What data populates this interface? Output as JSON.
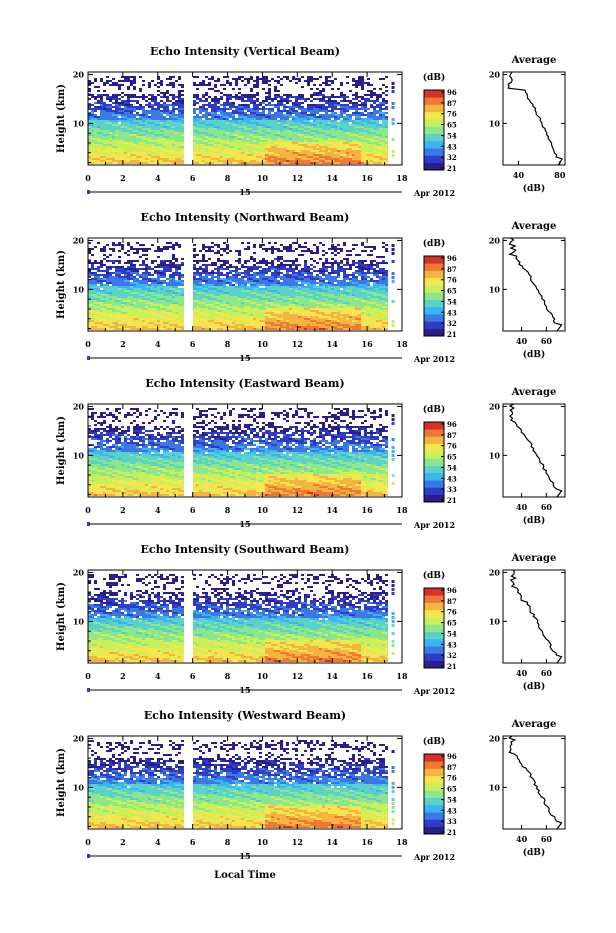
{
  "figure": {
    "footer_label": "Local Time",
    "date_label": "Apr 2012",
    "day_label": "15",
    "colorbar_unit": "(dB)",
    "profile_title": "Average",
    "profile_xlabel": "(dB)",
    "colormap": [
      "#2a1e8c",
      "#2f3cc8",
      "#3a78e6",
      "#3cb4f0",
      "#5ad2c8",
      "#8ce68c",
      "#c8f05a",
      "#f5e650",
      "#f5b440",
      "#f07832",
      "#d23228"
    ]
  },
  "chart_data": [
    {
      "type": "heatmap",
      "title": "Echo Intensity (Vertical Beam)",
      "ylabel": "Height (km)",
      "xticks": [
        0,
        2,
        4,
        6,
        8,
        10,
        12,
        14,
        16,
        18
      ],
      "yticks": [
        10,
        20
      ],
      "xlim": [
        0,
        18
      ],
      "ylim": [
        1.5,
        20.5
      ],
      "colorbar_ticks": [
        96,
        87,
        76,
        65,
        54,
        43,
        32,
        21
      ],
      "data_gap_hours": [
        5.5,
        6.0
      ],
      "profile": {
        "xticks": [
          40,
          80
        ],
        "xlim": [
          25,
          85
        ],
        "yticks": [
          10,
          20
        ]
      }
    },
    {
      "type": "heatmap",
      "title": "Echo Intensity (Northward Beam)",
      "ylabel": "Height (km)",
      "xticks": [
        0,
        2,
        4,
        6,
        8,
        10,
        12,
        14,
        16,
        18
      ],
      "yticks": [
        10,
        20
      ],
      "xlim": [
        0,
        18
      ],
      "ylim": [
        1.5,
        20.5
      ],
      "colorbar_ticks": [
        96,
        87,
        76,
        65,
        54,
        43,
        32,
        21
      ],
      "data_gap_hours": [
        5.5,
        6.0
      ],
      "profile": {
        "xticks": [
          40,
          60
        ],
        "xlim": [
          25,
          75
        ],
        "yticks": [
          10,
          20
        ]
      }
    },
    {
      "type": "heatmap",
      "title": "Echo Intensity (Eastward Beam)",
      "ylabel": "Height (km)",
      "xticks": [
        0,
        2,
        4,
        6,
        8,
        10,
        12,
        14,
        16,
        18
      ],
      "yticks": [
        10,
        20
      ],
      "xlim": [
        0,
        18
      ],
      "ylim": [
        1.5,
        20.5
      ],
      "colorbar_ticks": [
        96,
        87,
        76,
        65,
        54,
        43,
        33,
        21
      ],
      "data_gap_hours": [
        5.5,
        6.0
      ],
      "profile": {
        "xticks": [
          40,
          60
        ],
        "xlim": [
          25,
          75
        ],
        "yticks": [
          10,
          20
        ]
      }
    },
    {
      "type": "heatmap",
      "title": "Echo Intensity (Southward Beam)",
      "ylabel": "Height (km)",
      "xticks": [
        0,
        2,
        4,
        6,
        8,
        10,
        12,
        14,
        16,
        18
      ],
      "yticks": [
        10,
        20
      ],
      "xlim": [
        0,
        18
      ],
      "ylim": [
        1.5,
        20.5
      ],
      "colorbar_ticks": [
        96,
        87,
        76,
        65,
        54,
        43,
        32,
        21
      ],
      "data_gap_hours": [
        5.5,
        6.0
      ],
      "profile": {
        "xticks": [
          40,
          60
        ],
        "xlim": [
          25,
          75
        ],
        "yticks": [
          10,
          20
        ]
      }
    },
    {
      "type": "heatmap",
      "title": "Echo Intensity (Westward Beam)",
      "ylabel": "Height (km)",
      "xticks": [
        0,
        2,
        4,
        6,
        8,
        10,
        12,
        14,
        16,
        18
      ],
      "yticks": [
        10,
        20
      ],
      "xlim": [
        0,
        18
      ],
      "ylim": [
        1.5,
        20.5
      ],
      "colorbar_ticks": [
        96,
        87,
        76,
        65,
        54,
        43,
        33,
        21
      ],
      "data_gap_hours": [
        5.5,
        6.0
      ],
      "profile": {
        "xticks": [
          40,
          60
        ],
        "xlim": [
          25,
          75
        ],
        "yticks": [
          10,
          20
        ]
      }
    }
  ]
}
